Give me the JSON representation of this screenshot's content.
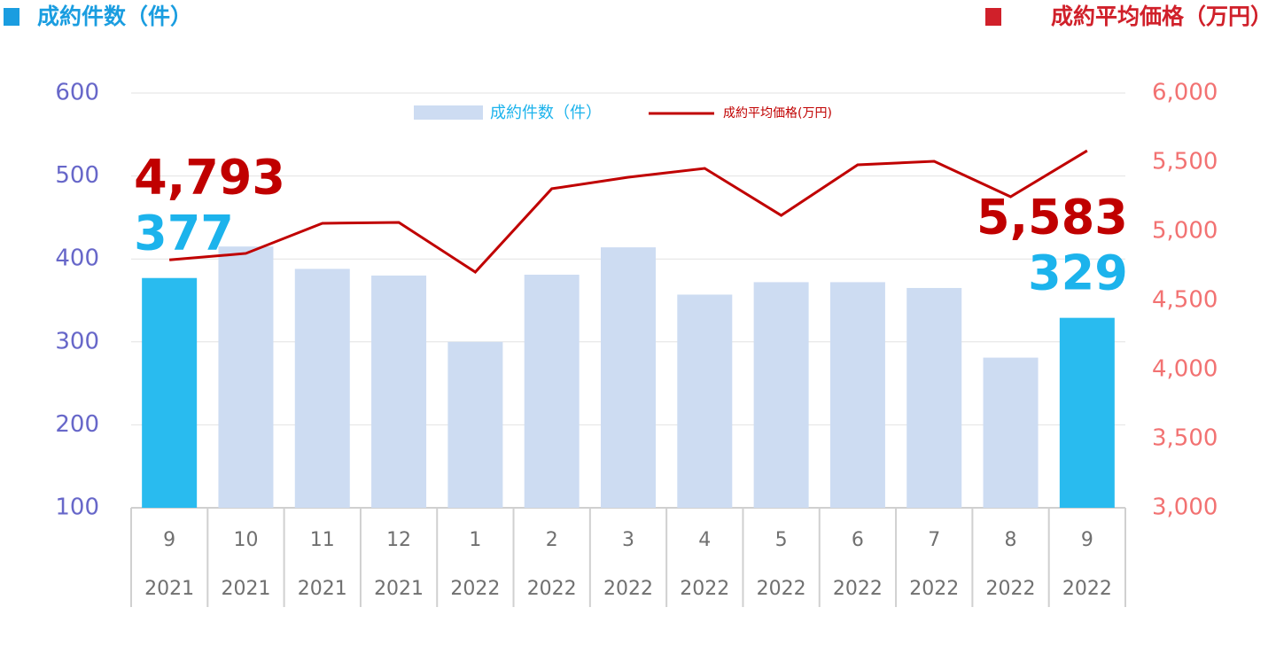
{
  "chart_data": {
    "type": "bar_line",
    "ylabel": "成約件数（件）",
    "y2label": "成約平均価格（万円）",
    "categories": [
      [
        "9",
        "2021"
      ],
      [
        "10",
        "2021"
      ],
      [
        "11",
        "2021"
      ],
      [
        "12",
        "2021"
      ],
      [
        "1",
        "2022"
      ],
      [
        "2",
        "2022"
      ],
      [
        "3",
        "2022"
      ],
      [
        "4",
        "2022"
      ],
      [
        "5",
        "2022"
      ],
      [
        "6",
        "2022"
      ],
      [
        "7",
        "2022"
      ],
      [
        "8",
        "2022"
      ],
      [
        "9",
        "2022"
      ]
    ],
    "series": [
      {
        "name": "成約件数（件）",
        "type": "bar",
        "color": "#cddcf2",
        "colors": [
          "#29bbef",
          "#cddcf2",
          "#cddcf2",
          "#cddcf2",
          "#cddcf2",
          "#cddcf2",
          "#cddcf2",
          "#cddcf2",
          "#cddcf2",
          "#cddcf2",
          "#cddcf2",
          "#cddcf2",
          "#29bbef"
        ],
        "values": [
          377,
          415,
          388,
          380,
          300,
          381,
          414,
          357,
          372,
          372,
          365,
          281,
          329
        ],
        "value_labels": [
          "377",
          null,
          null,
          null,
          null,
          null,
          null,
          null,
          null,
          null,
          null,
          null,
          "329"
        ]
      },
      {
        "name": "成約平均価格(万円)",
        "type": "line",
        "axis": "y2",
        "color": "#c00000",
        "values": [
          4793,
          4840,
          5058,
          5064,
          4705,
          5308,
          5391,
          5455,
          5115,
          5481,
          5506,
          5250,
          5583
        ],
        "value_labels": [
          "4,793",
          null,
          null,
          null,
          null,
          null,
          null,
          null,
          null,
          null,
          null,
          null,
          "5,583"
        ]
      }
    ],
    "ylim": [
      100,
      600
    ],
    "yticks": [
      100,
      200,
      300,
      400,
      500,
      600
    ],
    "y2lim": [
      3000,
      6000
    ],
    "y2ticks": [
      {
        "value": 3000,
        "label": "3,000"
      },
      {
        "value": 3500,
        "label": "3,500"
      },
      {
        "value": 4000,
        "label": "4,000"
      },
      {
        "value": 4500,
        "label": "4,500"
      },
      {
        "value": 5000,
        "label": "5,000"
      },
      {
        "value": 5500,
        "label": "5,500"
      },
      {
        "value": 6000,
        "label": "6,000"
      }
    ],
    "grid": true
  }
}
